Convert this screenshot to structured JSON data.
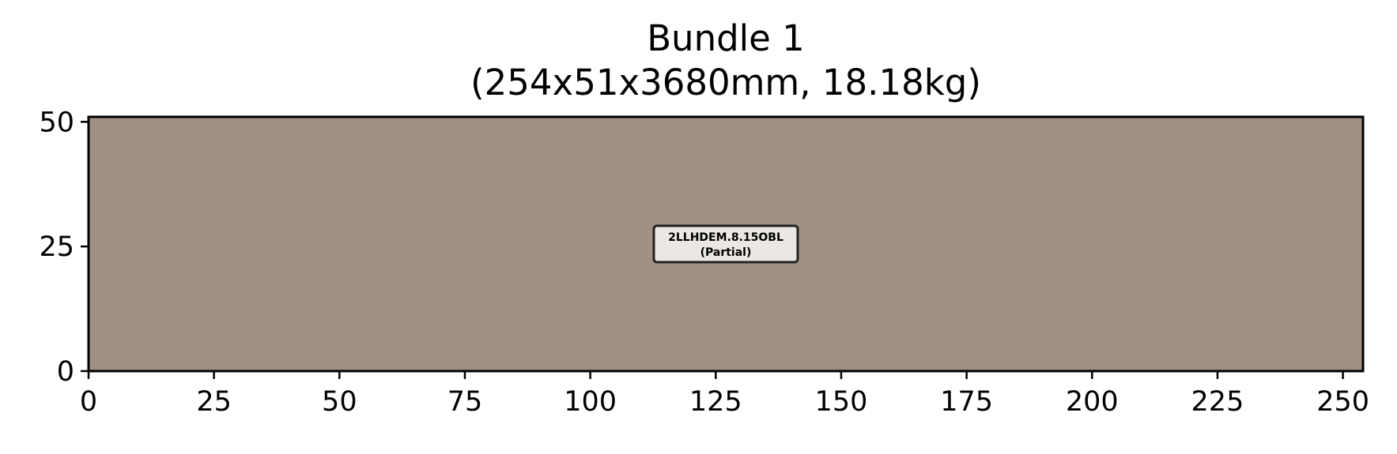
{
  "chart_data": {
    "type": "heatmap",
    "title": "Bundle 1",
    "subtitle": "(254x51x3680mm, 18.18kg)",
    "xlabel": "",
    "ylabel": "",
    "xlim": [
      0,
      254
    ],
    "ylim": [
      0,
      51
    ],
    "x_ticks": [
      0,
      25,
      50,
      75,
      100,
      125,
      150,
      175,
      200,
      225,
      250
    ],
    "y_ticks": [
      0,
      25,
      50
    ],
    "grid": false,
    "rectangles": [
      {
        "x0": 0,
        "x1": 254,
        "y0": 0,
        "y1": 51,
        "color": "#a09184",
        "label": "2LLHDEM.8.15OBL",
        "sublabel": "(Partial)"
      }
    ],
    "label_box_fill": "#ebe7e3"
  }
}
